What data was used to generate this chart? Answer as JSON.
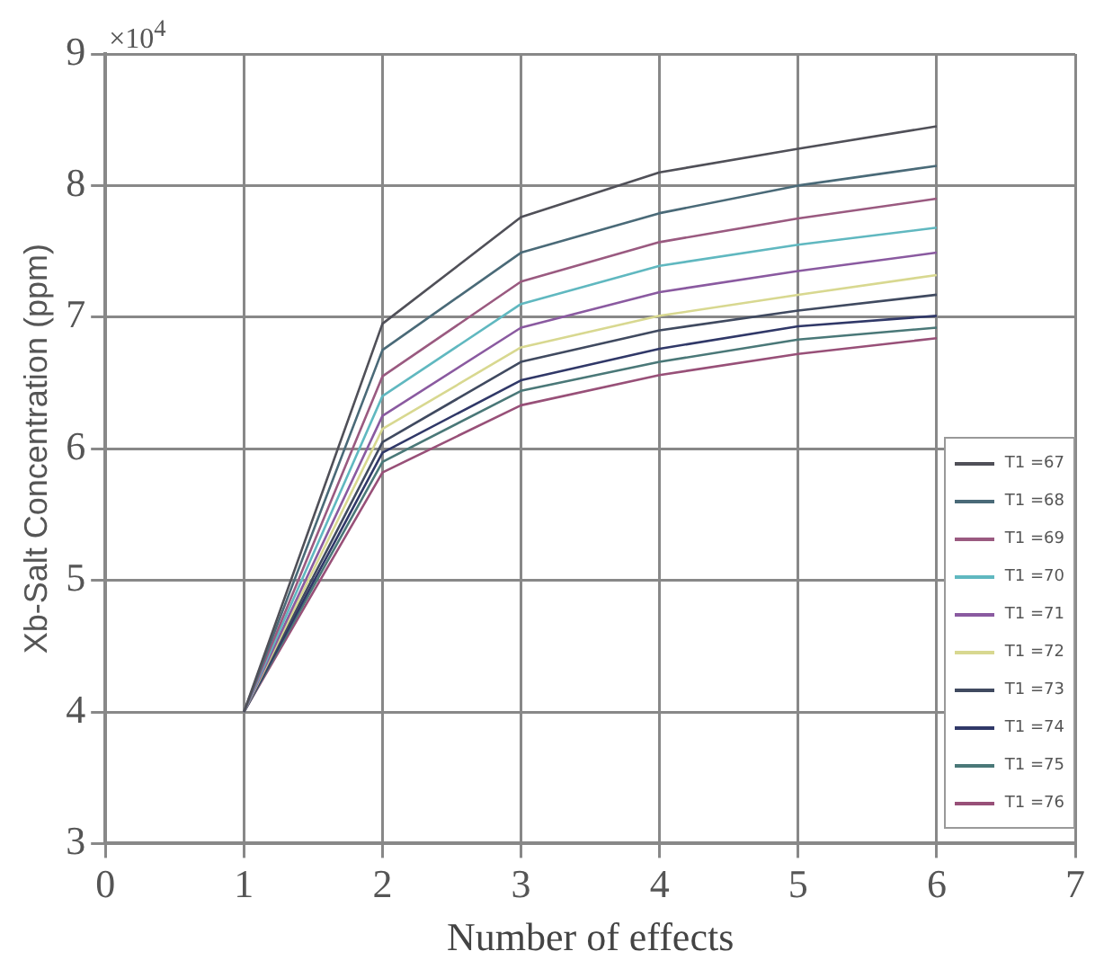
{
  "chart_data": {
    "type": "line",
    "xlabel": "Number of effects",
    "ylabel": "Xb-Salt Concentration (ppm)",
    "annotations": [
      "×10$^{4}$"
    ],
    "x": [
      1,
      2,
      3,
      4,
      5,
      6
    ],
    "xlim": [
      0,
      7
    ],
    "xticks": [
      0,
      1,
      2,
      3,
      4,
      5,
      6,
      7
    ],
    "ylim": [
      3,
      9
    ],
    "yticks": [
      3,
      4,
      5,
      6,
      7,
      8,
      9
    ],
    "grid": true,
    "legend": "bottom right",
    "marker": "none",
    "line_style": "solid",
    "series": [
      {
        "name": "T1 =67",
        "color": "#505058",
        "values": [
          4,
          6.95,
          7.76,
          8.1,
          8.28,
          8.45
        ]
      },
      {
        "name": "T1 =68",
        "color": "#4a6a78",
        "values": [
          4,
          6.75,
          7.49,
          7.79,
          8.0,
          8.15
        ]
      },
      {
        "name": "T1 =69",
        "color": "#9a5a80",
        "values": [
          4,
          6.55,
          7.27,
          7.57,
          7.75,
          7.9
        ]
      },
      {
        "name": "T1 =70",
        "color": "#60b8c0",
        "values": [
          4,
          6.4,
          7.1,
          7.39,
          7.55,
          7.68
        ]
      },
      {
        "name": "T1 =71",
        "color": "#8a5aa0",
        "values": [
          4,
          6.25,
          6.92,
          7.19,
          7.35,
          7.49
        ]
      },
      {
        "name": "T1 =72",
        "color": "#d8d890",
        "values": [
          4,
          6.15,
          6.77,
          7.01,
          7.17,
          7.32
        ]
      },
      {
        "name": "T1 =73",
        "color": "#404a60",
        "values": [
          4,
          6.05,
          6.66,
          6.9,
          7.05,
          7.17
        ]
      },
      {
        "name": "T1 =74",
        "color": "#303868",
        "values": [
          4,
          5.97,
          6.52,
          6.76,
          6.93,
          7.01
        ]
      },
      {
        "name": "T1 =75",
        "color": "#4a7878",
        "values": [
          4,
          5.9,
          6.44,
          6.66,
          6.83,
          6.92
        ]
      },
      {
        "name": "T1 =76",
        "color": "#985078",
        "values": [
          4,
          5.82,
          6.33,
          6.56,
          6.72,
          6.84
        ]
      }
    ]
  }
}
